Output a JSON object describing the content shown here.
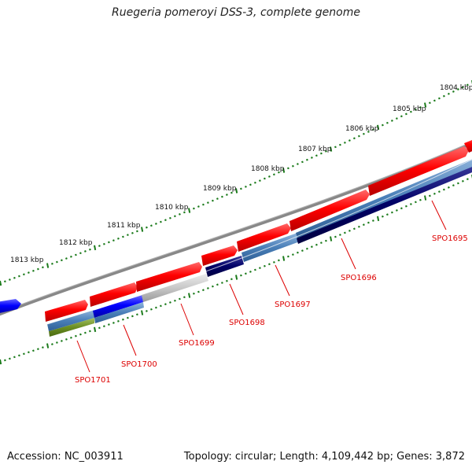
{
  "title": "Ruegeria pomeroyi DSS-3, complete genome",
  "footer": {
    "accession": "Accession: NC_003911",
    "summary": "Topology: circular; Length: 4,109,442 bp; Genes: 3,872"
  },
  "scale_labels": [
    "1804 kbp",
    "1805 kbp",
    "1806 kbp",
    "1807 kbp",
    "1808 kbp",
    "1809 kbp",
    "1810 kbp",
    "1811 kbp",
    "1812 kbp",
    "1813 kbp"
  ],
  "gene_labels": [
    "SPO1695",
    "SPO1696",
    "SPO1697",
    "SPO1698",
    "SPO1699",
    "SPO1700",
    "SPO1701"
  ],
  "colors": {
    "backbone": "#7a7a7a",
    "forward_cds": "#ff0000",
    "reverse_cds": "#0000ff",
    "scale_ticks": "#1a7a1a",
    "gene_label": "#dd0000",
    "steel_blue": "#4a7fb8",
    "navy": "#000066",
    "light_gray": "#c8c8c8",
    "olive": "#6b8e23"
  }
}
